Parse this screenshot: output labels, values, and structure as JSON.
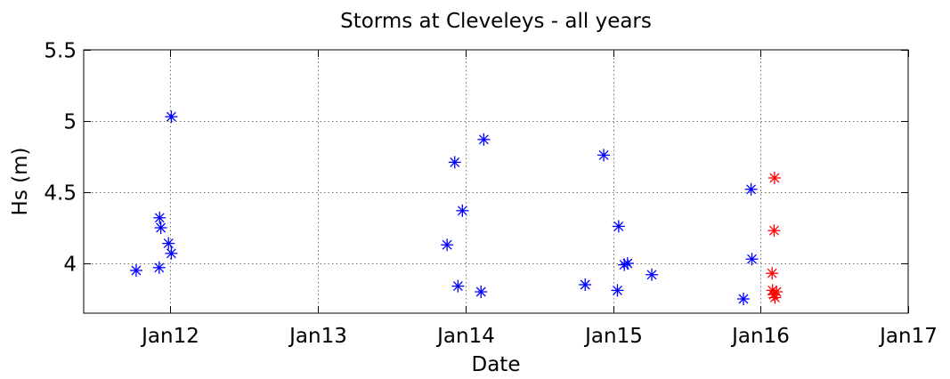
{
  "chart_data": {
    "type": "scatter",
    "title": "Storms at Cleveleys - all years",
    "xlabel": "Date",
    "ylabel": "Hs (m)",
    "x_axis": {
      "kind": "date",
      "range": [
        "2011-05-31",
        "2017-01-01"
      ],
      "ticks": [
        {
          "date": "2012-01-01",
          "label": "Jan12"
        },
        {
          "date": "2013-01-01",
          "label": "Jan13"
        },
        {
          "date": "2014-01-01",
          "label": "Jan14"
        },
        {
          "date": "2015-01-01",
          "label": "Jan15"
        },
        {
          "date": "2016-01-01",
          "label": "Jan16"
        },
        {
          "date": "2017-01-01",
          "label": "Jan17"
        }
      ]
    },
    "y_axis": {
      "range": [
        3.65,
        5.5
      ],
      "ticks": [
        {
          "value": 4,
          "label": "4"
        },
        {
          "value": 4.5,
          "label": "4.5"
        },
        {
          "value": 5,
          "label": "5"
        },
        {
          "value": 5.5,
          "label": "5.5"
        }
      ]
    },
    "grid": true,
    "marker": "asterisk",
    "series": [
      {
        "color": "#0000ff",
        "points": [
          {
            "x": "2011-10-08",
            "y": 3.95
          },
          {
            "x": "2011-12-04",
            "y": 3.97
          },
          {
            "x": "2011-12-05",
            "y": 4.32
          },
          {
            "x": "2011-12-08",
            "y": 4.25
          },
          {
            "x": "2011-12-27",
            "y": 4.14
          },
          {
            "x": "2012-01-03",
            "y": 4.07
          },
          {
            "x": "2012-01-03",
            "y": 5.03
          },
          {
            "x": "2013-11-16",
            "y": 4.13
          },
          {
            "x": "2013-12-05",
            "y": 4.71
          },
          {
            "x": "2013-12-13",
            "y": 3.84
          },
          {
            "x": "2013-12-24",
            "y": 4.37
          },
          {
            "x": "2014-02-08",
            "y": 3.8
          },
          {
            "x": "2014-02-15",
            "y": 4.87
          },
          {
            "x": "2014-10-24",
            "y": 3.85
          },
          {
            "x": "2014-12-09",
            "y": 4.76
          },
          {
            "x": "2015-01-12",
            "y": 3.81
          },
          {
            "x": "2015-01-15",
            "y": 4.26
          },
          {
            "x": "2015-01-29",
            "y": 3.99
          },
          {
            "x": "2015-02-06",
            "y": 4.0
          },
          {
            "x": "2015-04-07",
            "y": 3.92
          },
          {
            "x": "2015-11-20",
            "y": 3.75
          },
          {
            "x": "2015-12-09",
            "y": 4.52
          },
          {
            "x": "2015-12-11",
            "y": 4.03
          }
        ]
      },
      {
        "color": "#ff0000",
        "points": [
          {
            "x": "2016-01-30",
            "y": 3.93
          },
          {
            "x": "2016-01-31",
            "y": 3.81
          },
          {
            "x": "2016-02-03",
            "y": 3.78
          },
          {
            "x": "2016-02-04",
            "y": 4.23
          },
          {
            "x": "2016-02-05",
            "y": 4.6
          },
          {
            "x": "2016-02-06",
            "y": 3.76
          },
          {
            "x": "2016-02-10",
            "y": 3.8
          }
        ]
      }
    ]
  }
}
